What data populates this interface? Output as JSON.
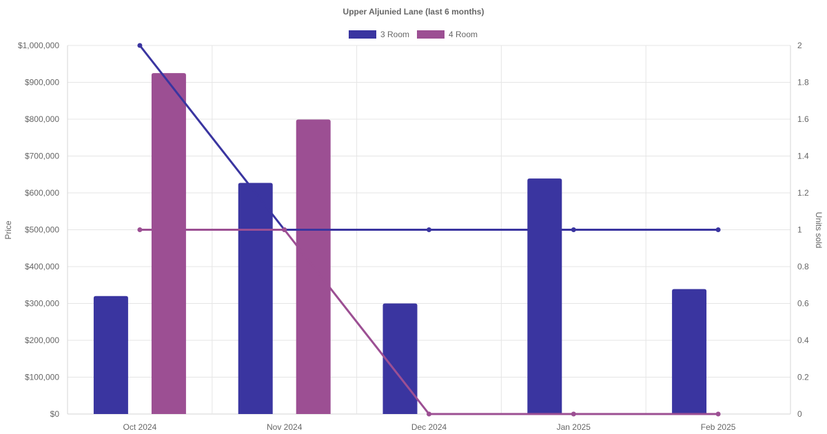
{
  "chart_data": {
    "type": "bar",
    "title": "Upper Aljunied Lane (last 6 months)",
    "categories": [
      "Oct 2024",
      "Nov 2024",
      "Dec 2024",
      "Jan 2025",
      "Feb 2025"
    ],
    "series": [
      {
        "name": "3 Room",
        "color": "#3a35a0",
        "values": [
          320000,
          627000,
          300000,
          639000,
          339000
        ],
        "units_sold": [
          2,
          1,
          1,
          1,
          1
        ]
      },
      {
        "name": "4 Room",
        "color": "#9c4f93",
        "values": [
          925000,
          799000,
          null,
          null,
          null
        ],
        "units_sold": [
          1,
          1,
          0,
          0,
          0
        ]
      }
    ],
    "bars": "price",
    "lines": "units_sold",
    "ylabel": "Price",
    "y2label": "Units sold",
    "ylim": [
      0,
      1000000
    ],
    "y2lim": [
      0,
      2
    ],
    "y_ticks": [
      "$0",
      "$100,000",
      "$200,000",
      "$300,000",
      "$400,000",
      "$500,000",
      "$600,000",
      "$700,000",
      "$800,000",
      "$900,000",
      "$1,000,000"
    ],
    "y2_ticks": [
      "0",
      "0.2",
      "0.4",
      "0.6",
      "0.8",
      "1",
      "1.2",
      "1.4",
      "1.6",
      "1.8",
      "2"
    ],
    "grid": true,
    "legend": "top-center"
  }
}
